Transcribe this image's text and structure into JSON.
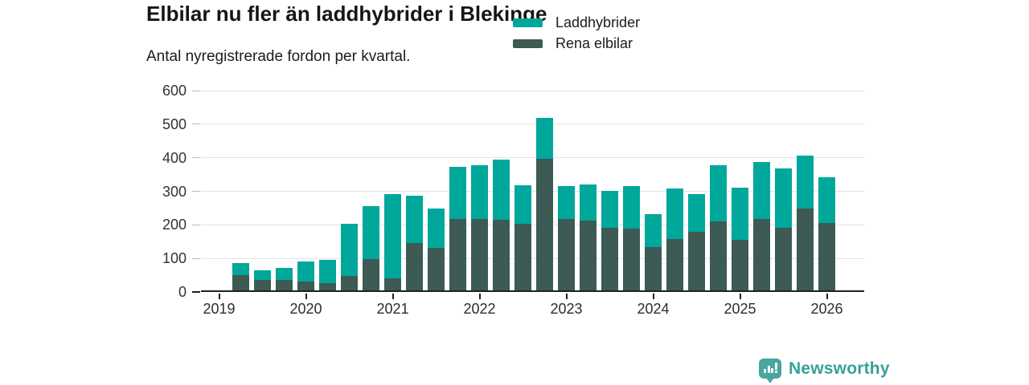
{
  "header": {
    "title": "Elbilar nu fler än laddhybrider i Blekinge",
    "subtitle": "Antal nyregistrerade fordon per kvartal."
  },
  "chart_data": {
    "type": "bar",
    "stacked": true,
    "title": "Elbilar nu fler än laddhybrider i Blekinge",
    "subtitle": "Antal nyregistrerade fordon per kvartal.",
    "x": [
      "2019 Q2",
      "2019 Q3",
      "2019 Q4",
      "2020 Q1",
      "2020 Q2",
      "2020 Q3",
      "2020 Q4",
      "2021 Q1",
      "2021 Q2",
      "2021 Q3",
      "2021 Q4",
      "2022 Q1",
      "2022 Q2",
      "2022 Q3",
      "2022 Q4",
      "2023 Q1",
      "2023 Q2",
      "2023 Q3",
      "2023 Q4",
      "2024 Q1",
      "2024 Q2",
      "2024 Q3",
      "2024 Q4",
      "2025 Q1",
      "2025 Q2",
      "2025 Q3",
      "2025 Q4",
      "2026 Q1"
    ],
    "series": [
      {
        "name": "Rena elbilar",
        "color": "#3d5a54",
        "stack_order": "bottom",
        "values": [
          45,
          30,
          30,
          27,
          22,
          42,
          93,
          36,
          142,
          126,
          214,
          214,
          210,
          199,
          391,
          213,
          208,
          186,
          185,
          130,
          154,
          174,
          206,
          151,
          213,
          186,
          243,
          200
        ]
      },
      {
        "name": "Laddhybrider",
        "color": "#00a79b",
        "stack_order": "top",
        "values": [
          37,
          30,
          36,
          60,
          68,
          156,
          159,
          250,
          140,
          119,
          154,
          159,
          180,
          115,
          123,
          98,
          107,
          110,
          125,
          96,
          150,
          112,
          168,
          154,
          170,
          177,
          158,
          138
        ]
      }
    ],
    "legend": [
      {
        "label": "Laddhybrider",
        "color": "#00a79b"
      },
      {
        "label": "Rena elbilar",
        "color": "#3d5a54"
      }
    ],
    "legend_position": "top-right",
    "grid": "horizontal",
    "ylim": [
      0,
      600
    ],
    "yticks": [
      0,
      100,
      200,
      300,
      400,
      500,
      600
    ],
    "xticks": [
      "2019",
      "2020",
      "2021",
      "2022",
      "2023",
      "2024",
      "2025",
      "2026"
    ]
  },
  "branding": {
    "logo_text": "Newsworthy",
    "text_color": "#38a09a",
    "icon_color": "#4aa5a0"
  }
}
